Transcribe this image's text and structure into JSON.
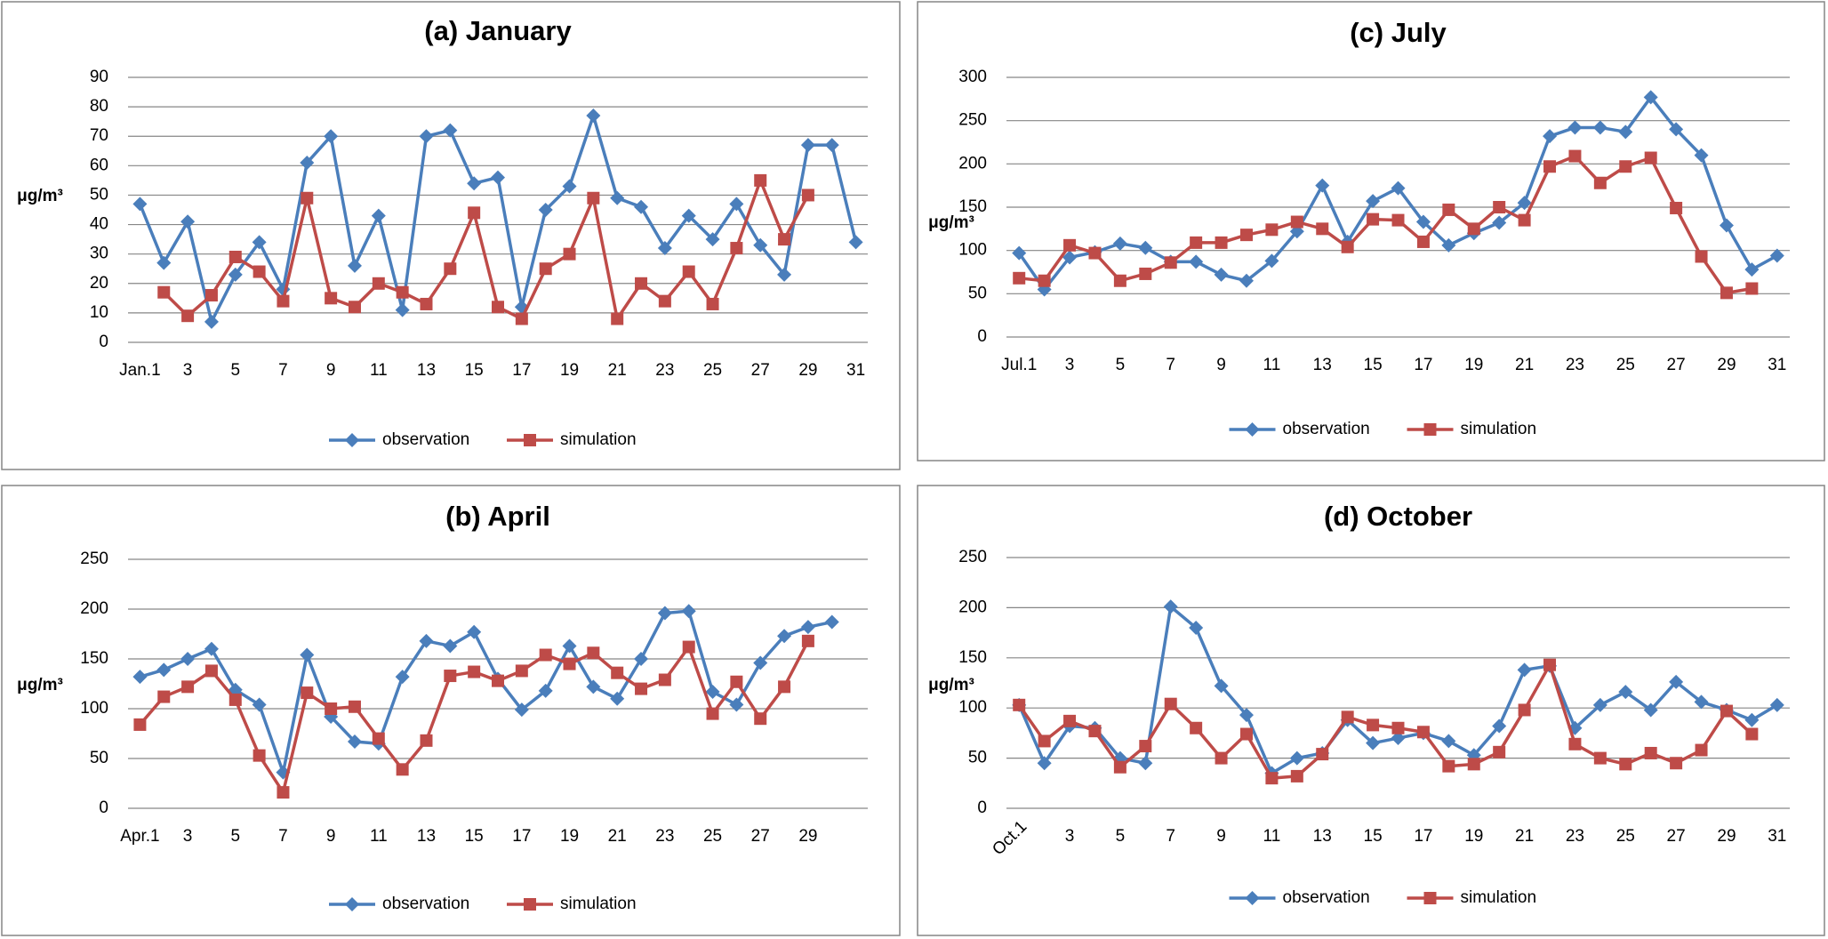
{
  "chart_data": [
    {
      "type": "line",
      "title": "(a) January",
      "ylabel": "μg/m³",
      "categories": [
        "Jan.1",
        null,
        "3",
        null,
        "5",
        null,
        "7",
        null,
        "9",
        null,
        "11",
        null,
        "13",
        null,
        "15",
        null,
        "17",
        null,
        "19",
        null,
        "21",
        null,
        "23",
        null,
        "25",
        null,
        "27",
        null,
        "29",
        null,
        "31"
      ],
      "ylim": [
        0,
        90
      ],
      "yticks": [
        0,
        10,
        20,
        30,
        40,
        50,
        60,
        70,
        80,
        90
      ],
      "grid": true,
      "legend": "bottom",
      "series": [
        {
          "name": "observation",
          "color": "#4a7ebb",
          "marker": "diamond",
          "values": [
            47,
            27,
            41,
            7,
            23,
            34,
            18,
            61,
            70,
            26,
            43,
            11,
            70,
            72,
            54,
            56,
            12,
            45,
            53,
            77,
            49,
            46,
            32,
            43,
            35,
            47,
            33,
            23,
            67,
            67,
            34
          ]
        },
        {
          "name": "simulation",
          "color": "#be4b48",
          "marker": "square",
          "values": [
            null,
            17,
            9,
            16,
            29,
            24,
            14,
            49,
            15,
            12,
            20,
            17,
            13,
            25,
            44,
            12,
            8,
            25,
            30,
            49,
            8,
            20,
            14,
            24,
            13,
            32,
            55,
            35,
            50,
            null,
            null
          ]
        }
      ]
    },
    {
      "type": "line",
      "title": "(c) July",
      "ylabel": "μg/m³",
      "categories": [
        "Jul.1",
        null,
        "3",
        null,
        "5",
        null,
        "7",
        null,
        "9",
        null,
        "11",
        null,
        "13",
        null,
        "15",
        null,
        "17",
        null,
        "19",
        null,
        "21",
        null,
        "23",
        null,
        "25",
        null,
        "27",
        null,
        "29",
        null,
        "31"
      ],
      "ylim": [
        0,
        300
      ],
      "yticks": [
        0,
        50,
        100,
        150,
        200,
        250,
        300
      ],
      "grid": true,
      "legend": "bottom",
      "series": [
        {
          "name": "observation",
          "color": "#4a7ebb",
          "marker": "diamond",
          "values": [
            97,
            55,
            92,
            98,
            108,
            103,
            87,
            87,
            72,
            65,
            88,
            122,
            175,
            110,
            157,
            172,
            133,
            106,
            120,
            132,
            155,
            232,
            242,
            242,
            237,
            277,
            240,
            210,
            129,
            78,
            94
          ]
        },
        {
          "name": "simulation",
          "color": "#be4b48",
          "marker": "square",
          "values": [
            68,
            65,
            106,
            97,
            65,
            73,
            86,
            109,
            109,
            118,
            124,
            133,
            125,
            104,
            136,
            135,
            110,
            147,
            125,
            150,
            135,
            197,
            209,
            178,
            197,
            207,
            149,
            93,
            51,
            56,
            null
          ]
        }
      ]
    },
    {
      "type": "line",
      "title": "(b) April",
      "ylabel": "μg/m³",
      "categories": [
        "Apr.1",
        null,
        "3",
        null,
        "5",
        null,
        "7",
        null,
        "9",
        null,
        "11",
        null,
        "13",
        null,
        "15",
        null,
        "17",
        null,
        "19",
        null,
        "21",
        null,
        "23",
        null,
        "25",
        null,
        "27",
        null,
        "29",
        null
      ],
      "ylim": [
        0,
        250
      ],
      "yticks": [
        0,
        50,
        100,
        150,
        200,
        250
      ],
      "grid": true,
      "legend": "bottom",
      "series": [
        {
          "name": "observation",
          "color": "#4a7ebb",
          "marker": "diamond",
          "values": [
            132,
            139,
            150,
            160,
            119,
            104,
            36,
            154,
            92,
            67,
            65,
            132,
            168,
            163,
            177,
            130,
            99,
            118,
            163,
            122,
            110,
            150,
            196,
            198,
            117,
            104,
            146,
            173,
            182,
            187
          ]
        },
        {
          "name": "simulation",
          "color": "#be4b48",
          "marker": "square",
          "values": [
            84,
            112,
            122,
            138,
            109,
            53,
            16,
            116,
            100,
            102,
            70,
            39,
            68,
            133,
            137,
            128,
            138,
            154,
            145,
            156,
            136,
            120,
            129,
            162,
            95,
            127,
            90,
            122,
            168,
            null
          ]
        }
      ]
    },
    {
      "type": "line",
      "title": "(d) October",
      "ylabel": "μg/m³",
      "categories": [
        "Oct.1",
        null,
        "3",
        null,
        "5",
        null,
        "7",
        null,
        "9",
        null,
        "11",
        null,
        "13",
        null,
        "15",
        null,
        "17",
        null,
        "19",
        null,
        "21",
        null,
        "23",
        null,
        "25",
        null,
        "27",
        null,
        "29",
        null,
        "31"
      ],
      "ylim": [
        0,
        250
      ],
      "yticks": [
        0,
        50,
        100,
        150,
        200,
        250
      ],
      "grid": true,
      "legend": "bottom",
      "series": [
        {
          "name": "observation",
          "color": "#4a7ebb",
          "marker": "diamond",
          "values": [
            103,
            45,
            82,
            80,
            50,
            45,
            201,
            180,
            122,
            93,
            35,
            50,
            55,
            88,
            65,
            70,
            75,
            67,
            53,
            82,
            138,
            142,
            80,
            103,
            116,
            98,
            126,
            106,
            98,
            88,
            103
          ]
        },
        {
          "name": "simulation",
          "color": "#be4b48",
          "marker": "square",
          "values": [
            103,
            67,
            87,
            77,
            41,
            62,
            104,
            80,
            50,
            74,
            30,
            32,
            54,
            91,
            83,
            80,
            76,
            42,
            44,
            56,
            98,
            143,
            64,
            50,
            44,
            55,
            45,
            58,
            97,
            74,
            null
          ]
        }
      ]
    }
  ]
}
